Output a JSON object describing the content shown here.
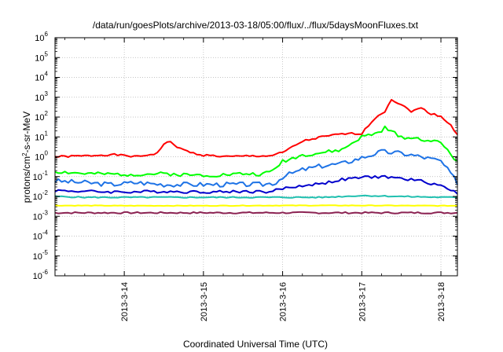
{
  "chart_data": {
    "type": "line",
    "title": "/data/run/goesPlots/archive/2013-03-18/05:00/flux/../flux/5daysMoonFluxes.txt",
    "xlabel": "Coordinated Universal Time (UTC)",
    "ylabel_parts": {
      "base": "protons/cm",
      "sup": "2",
      "rest": "-s-sr-MeV"
    },
    "y_scale": "log",
    "ylim": [
      1e-06,
      1000000.0
    ],
    "y_tick_mantissa": "10",
    "y_ticks": [
      {
        "value": 1e-06,
        "exp": "-6"
      },
      {
        "value": 1e-05,
        "exp": "-5"
      },
      {
        "value": 0.0001,
        "exp": "-4"
      },
      {
        "value": 0.001,
        "exp": "-3"
      },
      {
        "value": 0.01,
        "exp": "-2"
      },
      {
        "value": 0.1,
        "exp": "-1"
      },
      {
        "value": 1,
        "exp": "0"
      },
      {
        "value": 10,
        "exp": "1"
      },
      {
        "value": 100,
        "exp": "2"
      },
      {
        "value": 1000,
        "exp": "3"
      },
      {
        "value": 10000,
        "exp": "4"
      },
      {
        "value": 100000,
        "exp": "5"
      },
      {
        "value": 1000000,
        "exp": "6"
      }
    ],
    "xlim": [
      "2013-03-13T03:00",
      "2013-03-18T05:00"
    ],
    "x_ticks": [
      {
        "label": "2013-3-14",
        "date": "2013-03-14T00:00"
      },
      {
        "label": "2013-3-15",
        "date": "2013-03-15T00:00"
      },
      {
        "label": "2013-3-16",
        "date": "2013-03-16T00:00"
      },
      {
        "label": "2013-3-17",
        "date": "2013-03-17T00:00"
      },
      {
        "label": "2013-3-18",
        "date": "2013-03-18T00:00"
      }
    ],
    "grid": true,
    "legend": "none",
    "series": [
      {
        "color": "#ff0000",
        "x": [
          "2013-03-13T03:00",
          "2013-03-13T12:00",
          "2013-03-13T20:00",
          "2013-03-14T04:00",
          "2013-03-14T10:00",
          "2013-03-14T12:00",
          "2013-03-14T14:00",
          "2013-03-14T17:00",
          "2013-03-14T21:00",
          "2013-03-15T00:00",
          "2013-03-15T08:00",
          "2013-03-15T14:00",
          "2013-03-15T20:00",
          "2013-03-16T00:00",
          "2013-03-16T06:00",
          "2013-03-16T12:00",
          "2013-03-16T18:00",
          "2013-03-17T00:00",
          "2013-03-17T04:00",
          "2013-03-17T07:00",
          "2013-03-17T09:00",
          "2013-03-17T12:00",
          "2013-03-17T15:00",
          "2013-03-17T18:00",
          "2013-03-17T21:00",
          "2013-03-18T00:00",
          "2013-03-18T03:00",
          "2013-03-18T05:00"
        ],
        "y": [
          1.0,
          1.1,
          1.3,
          1.0,
          1.5,
          4.5,
          5.5,
          2.5,
          1.5,
          1.2,
          1.0,
          1.1,
          1.1,
          1.6,
          6.0,
          10,
          14,
          15,
          90,
          200,
          800,
          400,
          200,
          280,
          150,
          110,
          40,
          12
        ]
      },
      {
        "color": "#00ff00",
        "x": [
          "2013-03-13T03:00",
          "2013-03-13T12:00",
          "2013-03-13T20:00",
          "2013-03-14T04:00",
          "2013-03-14T12:00",
          "2013-03-14T20:00",
          "2013-03-15T04:00",
          "2013-03-15T12:00",
          "2013-03-15T18:00",
          "2013-03-15T21:00",
          "2013-03-16T00:00",
          "2013-03-16T06:00",
          "2013-03-16T12:00",
          "2013-03-16T18:00",
          "2013-03-17T00:00",
          "2013-03-17T05:00",
          "2013-03-17T07:00",
          "2013-03-17T12:00",
          "2013-03-17T18:00",
          "2013-03-18T00:00",
          "2013-03-18T03:00",
          "2013-03-18T05:00"
        ],
        "y": [
          0.18,
          0.14,
          0.13,
          0.13,
          0.14,
          0.12,
          0.12,
          0.14,
          0.13,
          0.2,
          0.6,
          1.2,
          1.6,
          2.2,
          10,
          16,
          28,
          10,
          8,
          5,
          1.5,
          0.5
        ]
      },
      {
        "color": "#1e73e6",
        "x": [
          "2013-03-13T03:00",
          "2013-03-13T12:00",
          "2013-03-13T20:00",
          "2013-03-14T04:00",
          "2013-03-14T12:00",
          "2013-03-14T20:00",
          "2013-03-15T04:00",
          "2013-03-15T12:00",
          "2013-03-15T18:00",
          "2013-03-15T22:00",
          "2013-03-16T00:00",
          "2013-03-16T06:00",
          "2013-03-16T12:00",
          "2013-03-16T18:00",
          "2013-03-17T00:00",
          "2013-03-17T06:00",
          "2013-03-17T12:00",
          "2013-03-17T18:00",
          "2013-03-18T00:00",
          "2013-03-18T05:00"
        ],
        "y": [
          0.06,
          0.05,
          0.04,
          0.05,
          0.04,
          0.04,
          0.04,
          0.04,
          0.04,
          0.05,
          0.1,
          0.22,
          0.35,
          0.45,
          0.9,
          1.8,
          1.5,
          1.0,
          0.6,
          0.05
        ]
      },
      {
        "color": "#0000cc",
        "x": [
          "2013-03-13T03:00",
          "2013-03-13T12:00",
          "2013-03-13T20:00",
          "2013-03-14T04:00",
          "2013-03-14T12:00",
          "2013-03-14T20:00",
          "2013-03-15T04:00",
          "2013-03-15T12:00",
          "2013-03-15T20:00",
          "2013-03-16T00:00",
          "2013-03-16T06:00",
          "2013-03-16T12:00",
          "2013-03-16T18:00",
          "2013-03-17T00:00",
          "2013-03-17T06:00",
          "2013-03-17T12:00",
          "2013-03-17T18:00",
          "2013-03-18T00:00",
          "2013-03-18T05:00"
        ],
        "y": [
          0.02,
          0.018,
          0.017,
          0.017,
          0.018,
          0.017,
          0.017,
          0.018,
          0.017,
          0.025,
          0.035,
          0.045,
          0.07,
          0.09,
          0.1,
          0.08,
          0.06,
          0.035,
          0.015
        ]
      },
      {
        "color": "#20c0b0",
        "x": [
          "2013-03-13T03:00",
          "2013-03-13T12:00",
          "2013-03-13T20:00",
          "2013-03-14T04:00",
          "2013-03-14T12:00",
          "2013-03-14T20:00",
          "2013-03-15T04:00",
          "2013-03-15T12:00",
          "2013-03-15T20:00",
          "2013-03-16T00:00",
          "2013-03-16T12:00",
          "2013-03-17T00:00",
          "2013-03-17T12:00",
          "2013-03-18T00:00",
          "2013-03-18T05:00"
        ],
        "y": [
          0.01,
          0.009,
          0.009,
          0.009,
          0.009,
          0.009,
          0.009,
          0.009,
          0.009,
          0.009,
          0.009,
          0.011,
          0.01,
          0.009,
          0.009
        ]
      },
      {
        "color": "#ffff00",
        "x": [
          "2013-03-13T03:00",
          "2013-03-14T00:00",
          "2013-03-15T00:00",
          "2013-03-16T00:00",
          "2013-03-17T00:00",
          "2013-03-18T00:00",
          "2013-03-18T05:00"
        ],
        "y": [
          0.0035,
          0.0034,
          0.0034,
          0.0035,
          0.0035,
          0.0034,
          0.0034
        ]
      },
      {
        "color": "#8b2252",
        "x": [
          "2013-03-13T03:00",
          "2013-03-14T00:00",
          "2013-03-15T00:00",
          "2013-03-16T00:00",
          "2013-03-17T00:00",
          "2013-03-18T00:00",
          "2013-03-18T05:00"
        ],
        "y": [
          0.0015,
          0.0015,
          0.0015,
          0.0015,
          0.0015,
          0.0015,
          0.0015
        ]
      }
    ]
  }
}
